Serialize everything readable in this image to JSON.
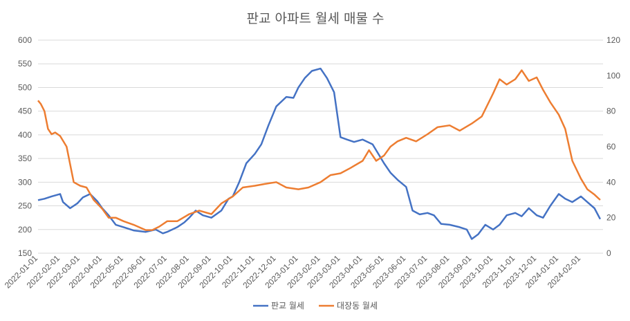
{
  "chart_data": {
    "type": "line",
    "title": "판교 아파트 월세 매물 수",
    "xlabel": "",
    "ylabel": "",
    "x_ticks": [
      "2022-01-01",
      "2022-02-01",
      "2022-03-01",
      "2022-04-01",
      "2022-05-01",
      "2022-06-01",
      "2022-07-01",
      "2022-08-01",
      "2022-09-01",
      "2022-10-01",
      "2022-11-01",
      "2022-12-01",
      "2023-01-01",
      "2023-02-01",
      "2023-03-01",
      "2023-04-01",
      "2023-05-01",
      "2023-06-01",
      "2023-07-01",
      "2023-08-01",
      "2023-09-01",
      "2023-10-01",
      "2023-11-01",
      "2023-12-01",
      "2024-01-01",
      "2024-02-01"
    ],
    "y_left": {
      "min": 150,
      "max": 600,
      "step": 50
    },
    "y_right": {
      "min": 0,
      "max": 120,
      "step": 20
    },
    "grid": true,
    "legend": "bottom",
    "series": [
      {
        "name": "판교 월세",
        "axis": "left",
        "color": "#4472c4",
        "x": [
          "2022-01-01",
          "2022-01-10",
          "2022-01-20",
          "2022-02-01",
          "2022-02-05",
          "2022-02-15",
          "2022-02-25",
          "2022-03-05",
          "2022-03-15",
          "2022-03-25",
          "2022-04-01",
          "2022-04-10",
          "2022-04-20",
          "2022-05-01",
          "2022-05-15",
          "2022-06-01",
          "2022-06-15",
          "2022-06-25",
          "2022-07-01",
          "2022-07-15",
          "2022-07-25",
          "2022-08-01",
          "2022-08-10",
          "2022-08-20",
          "2022-09-01",
          "2022-09-15",
          "2022-09-25",
          "2022-10-01",
          "2022-10-10",
          "2022-10-20",
          "2022-11-01",
          "2022-11-10",
          "2022-11-20",
          "2022-12-01",
          "2022-12-15",
          "2022-12-25",
          "2023-01-01",
          "2023-01-10",
          "2023-01-20",
          "2023-02-01",
          "2023-02-10",
          "2023-02-20",
          "2023-03-01",
          "2023-03-10",
          "2023-03-20",
          "2023-04-01",
          "2023-04-15",
          "2023-05-01",
          "2023-05-10",
          "2023-05-20",
          "2023-06-01",
          "2023-06-10",
          "2023-06-20",
          "2023-07-01",
          "2023-07-10",
          "2023-07-20",
          "2023-08-01",
          "2023-08-15",
          "2023-08-25",
          "2023-09-01",
          "2023-09-10",
          "2023-09-20",
          "2023-10-01",
          "2023-10-10",
          "2023-10-20",
          "2023-11-01",
          "2023-11-10",
          "2023-11-20",
          "2023-12-01",
          "2023-12-10",
          "2023-12-20",
          "2024-01-01",
          "2024-01-10",
          "2024-01-20",
          "2024-02-01",
          "2024-02-10",
          "2024-02-20",
          "2024-02-28"
        ],
        "values": [
          262,
          265,
          270,
          275,
          258,
          245,
          255,
          268,
          275,
          260,
          245,
          230,
          210,
          205,
          198,
          195,
          200,
          192,
          195,
          205,
          215,
          225,
          240,
          230,
          225,
          240,
          265,
          270,
          300,
          340,
          360,
          380,
          420,
          460,
          480,
          478,
          500,
          520,
          535,
          540,
          520,
          490,
          395,
          390,
          385,
          390,
          380,
          340,
          320,
          305,
          290,
          240,
          232,
          235,
          230,
          212,
          210,
          205,
          200,
          180,
          190,
          210,
          200,
          210,
          230,
          235,
          228,
          245,
          230,
          225,
          250,
          275,
          265,
          258,
          270,
          258,
          245,
          222
        ]
      },
      {
        "name": "대장동 월세",
        "axis": "right",
        "color": "#ed7d31",
        "x": [
          "2022-01-01",
          "2022-01-05",
          "2022-01-10",
          "2022-01-15",
          "2022-01-20",
          "2022-01-25",
          "2022-02-01",
          "2022-02-10",
          "2022-02-20",
          "2022-03-01",
          "2022-03-10",
          "2022-03-20",
          "2022-04-01",
          "2022-04-10",
          "2022-04-20",
          "2022-05-01",
          "2022-05-15",
          "2022-06-01",
          "2022-06-10",
          "2022-06-20",
          "2022-07-01",
          "2022-07-15",
          "2022-08-01",
          "2022-08-15",
          "2022-09-01",
          "2022-09-15",
          "2022-10-01",
          "2022-10-15",
          "2022-11-01",
          "2022-11-15",
          "2022-12-01",
          "2022-12-15",
          "2023-01-01",
          "2023-01-15",
          "2023-02-01",
          "2023-02-15",
          "2023-03-01",
          "2023-03-15",
          "2023-04-01",
          "2023-04-10",
          "2023-04-20",
          "2023-05-01",
          "2023-05-10",
          "2023-05-20",
          "2023-06-01",
          "2023-06-15",
          "2023-07-01",
          "2023-07-15",
          "2023-08-01",
          "2023-08-15",
          "2023-09-01",
          "2023-09-15",
          "2023-10-01",
          "2023-10-10",
          "2023-10-20",
          "2023-11-01",
          "2023-11-10",
          "2023-11-20",
          "2023-12-01",
          "2023-12-10",
          "2023-12-20",
          "2024-01-01",
          "2024-01-10",
          "2024-01-20",
          "2024-02-01",
          "2024-02-10",
          "2024-02-20",
          "2024-02-28"
        ],
        "values": [
          86,
          84,
          80,
          70,
          67,
          68,
          66,
          60,
          40,
          38,
          37,
          30,
          25,
          20,
          20,
          18,
          16,
          13,
          13,
          15,
          18,
          18,
          22,
          24,
          22,
          28,
          32,
          37,
          38,
          39,
          40,
          37,
          36,
          37,
          40,
          44,
          45,
          48,
          52,
          58,
          52,
          55,
          60,
          63,
          65,
          63,
          67,
          71,
          72,
          69,
          73,
          77,
          90,
          98,
          95,
          98,
          103,
          97,
          99,
          92,
          85,
          78,
          70,
          52,
          42,
          36,
          33,
          30
        ]
      }
    ]
  }
}
